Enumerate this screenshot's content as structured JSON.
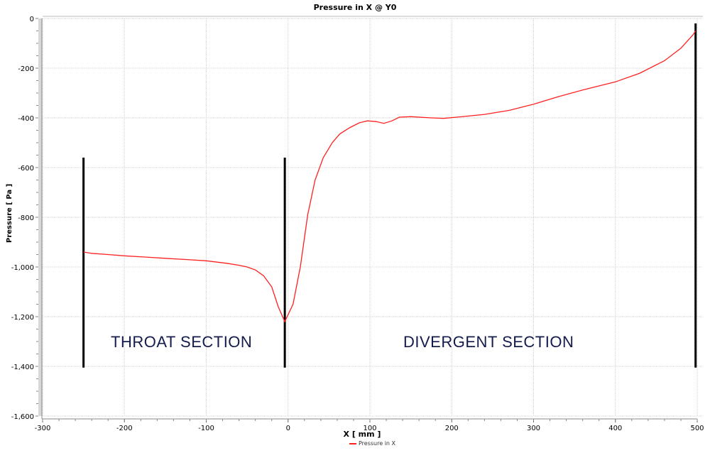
{
  "chart_data": {
    "type": "line",
    "title": "Pressure in X @ Y0",
    "xlabel": "X [ mm ]",
    "ylabel": "Pressure [ Pa ]",
    "xlim": [
      -300,
      500
    ],
    "ylim": [
      -1600,
      0
    ],
    "x_ticks": [
      -300,
      -200,
      -100,
      0,
      100,
      200,
      300,
      400,
      500
    ],
    "y_ticks": [
      0,
      -200,
      -400,
      -600,
      -800,
      -1000,
      -1200,
      -1400,
      -1600
    ],
    "x_tick_labels": [
      "-300",
      "-200",
      "-100",
      "0",
      "100",
      "200",
      "300",
      "400",
      "500"
    ],
    "y_tick_labels": [
      "0",
      "-200",
      "-400",
      "-600",
      "-800",
      "-1,000",
      "-1,200",
      "-1,400",
      "-1,600"
    ],
    "grid": true,
    "legend_position": "bottom",
    "series": [
      {
        "name": "Pressure in X",
        "color": "#ff2020",
        "x": [
          -250,
          -240,
          -220,
          -200,
          -175,
          -150,
          -125,
          -100,
          -75,
          -60,
          -50,
          -40,
          -30,
          -20,
          -12,
          -4,
          6,
          15,
          24,
          33,
          43,
          54,
          63,
          75,
          87,
          97,
          108,
          117,
          127,
          136,
          150,
          175,
          190,
          210,
          240,
          270,
          300,
          330,
          360,
          400,
          430,
          460,
          480,
          495,
          498
        ],
        "values": [
          -940,
          -945,
          -950,
          -955,
          -960,
          -965,
          -970,
          -975,
          -985,
          -993,
          -1000,
          -1012,
          -1035,
          -1080,
          -1160,
          -1220,
          -1150,
          -1000,
          -790,
          -650,
          -560,
          -500,
          -465,
          -440,
          -420,
          -412,
          -415,
          -422,
          -412,
          -397,
          -395,
          -400,
          -402,
          -396,
          -386,
          -370,
          -345,
          -315,
          -288,
          -255,
          -220,
          -170,
          -120,
          -65,
          -50
        ]
      }
    ],
    "annotations": [
      {
        "text": "THROAT SECTION",
        "x_range": [
          -250,
          -5
        ]
      },
      {
        "text": "DIVERGENT SECTION",
        "x_range": [
          -5,
          500
        ]
      }
    ],
    "vertical_markers": [
      {
        "x": -250,
        "y_top": -560,
        "y_bottom": -1405
      },
      {
        "x": -4,
        "y_top": -560,
        "y_bottom": -1405
      },
      {
        "x": 498,
        "y_top": -20,
        "y_bottom": -1405
      }
    ]
  }
}
